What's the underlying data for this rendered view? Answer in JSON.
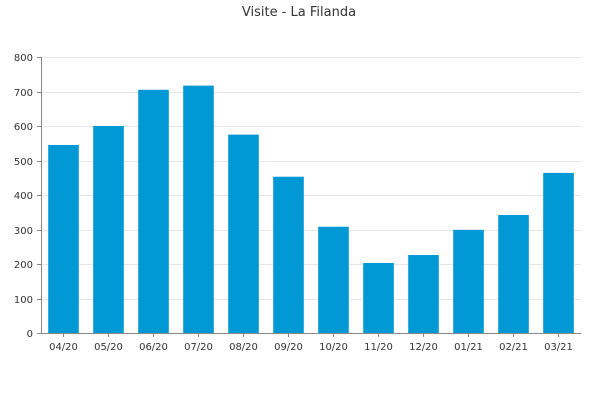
{
  "chart_data": {
    "type": "bar",
    "title": "Visite - La Filanda",
    "xlabel": "",
    "ylabel": "",
    "categories": [
      "04/20",
      "05/20",
      "06/20",
      "07/20",
      "08/20",
      "09/20",
      "10/20",
      "11/20",
      "12/20",
      "01/21",
      "02/21",
      "03/21"
    ],
    "values": [
      545,
      600,
      705,
      717,
      575,
      453,
      308,
      203,
      226,
      299,
      342,
      464
    ],
    "ylim": [
      0,
      800
    ],
    "yticks": [
      0,
      100,
      200,
      300,
      400,
      500,
      600,
      700,
      800
    ],
    "grid": true,
    "legend": "none",
    "bar_color": "#0099d6"
  }
}
